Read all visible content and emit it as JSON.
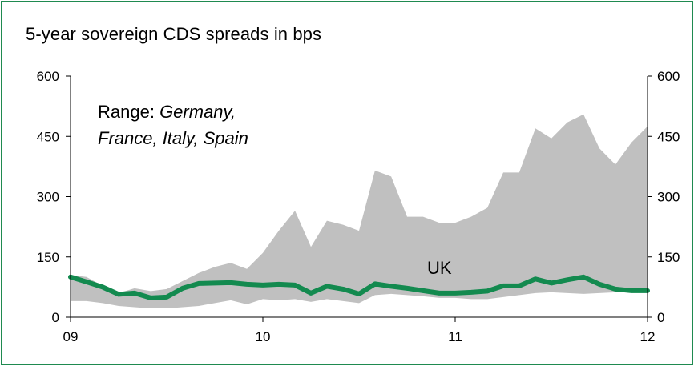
{
  "chart_data": {
    "type": "area",
    "title": "5-year sovereign CDS spreads in bps",
    "xlabel": "",
    "ylabel": "",
    "ylim": [
      0,
      600
    ],
    "y_ticks": [
      "0",
      "150",
      "300",
      "450",
      "600"
    ],
    "y_ticks_right": [
      "0",
      "150",
      "300",
      "450",
      "600"
    ],
    "x_tick_labels": [
      "09",
      "10",
      "11",
      "12"
    ],
    "x_tick_values": [
      2009,
      2010,
      2011,
      2012
    ],
    "xlim": [
      2009,
      2012
    ],
    "grid": false,
    "annotations": {
      "range_line1_prefix": "Range: ",
      "range_line1_italic": "Germany,",
      "range_line2_italic": "France, Italy, Spain",
      "uk_label": "UK"
    },
    "x": [
      2009.0,
      2009.083,
      2009.167,
      2009.25,
      2009.333,
      2009.417,
      2009.5,
      2009.583,
      2009.667,
      2009.75,
      2009.833,
      2009.917,
      2010.0,
      2010.083,
      2010.167,
      2010.25,
      2010.333,
      2010.417,
      2010.5,
      2010.583,
      2010.667,
      2010.75,
      2010.833,
      2010.917,
      2011.0,
      2011.083,
      2011.167,
      2011.25,
      2011.333,
      2011.417,
      2011.5,
      2011.583,
      2011.667,
      2011.75,
      2011.833,
      2011.917,
      2012.0
    ],
    "series": [
      {
        "kind": "range",
        "color": "#c0c0c0",
        "upper": [
          105,
          100,
          78,
          60,
          72,
          65,
          70,
          90,
          110,
          125,
          135,
          120,
          160,
          215,
          265,
          175,
          240,
          230,
          215,
          365,
          350,
          250,
          250,
          235,
          235,
          250,
          272,
          360,
          360,
          470,
          445,
          485,
          505,
          420,
          380,
          435,
          475
        ],
        "lower": [
          40,
          40,
          35,
          28,
          25,
          22,
          22,
          25,
          28,
          35,
          42,
          32,
          45,
          42,
          45,
          38,
          45,
          40,
          35,
          55,
          58,
          55,
          52,
          48,
          48,
          45,
          45,
          50,
          55,
          60,
          62,
          60,
          58,
          60,
          62,
          65,
          70
        ]
      },
      {
        "name": "UK",
        "kind": "line",
        "color": "#138a4f",
        "values": [
          100,
          88,
          75,
          57,
          60,
          48,
          50,
          72,
          84,
          85,
          86,
          82,
          80,
          82,
          80,
          60,
          77,
          70,
          58,
          83,
          77,
          72,
          66,
          60,
          60,
          62,
          65,
          78,
          78,
          95,
          85,
          93,
          100,
          82,
          70,
          66,
          66
        ]
      }
    ]
  }
}
